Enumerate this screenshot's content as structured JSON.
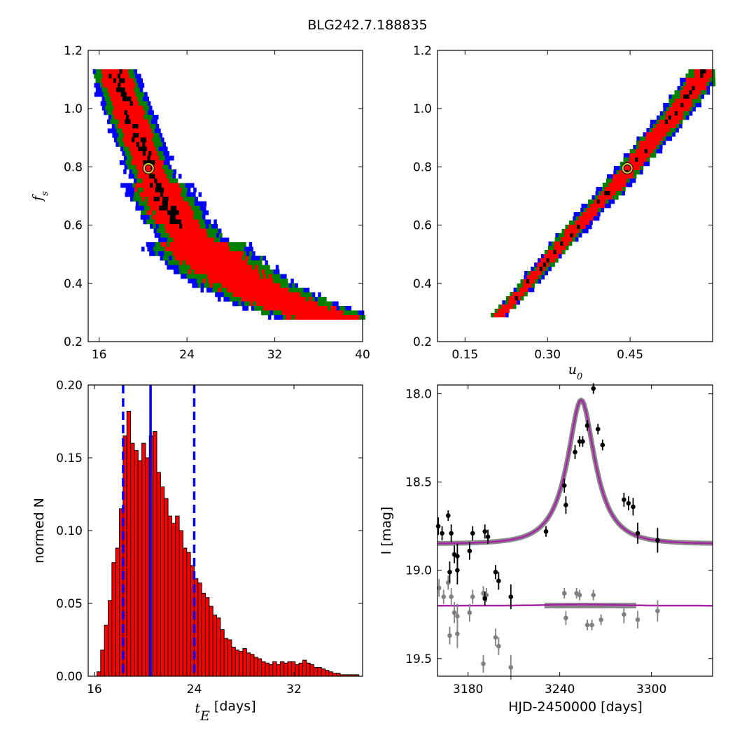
{
  "figure_title": "BLG242.7.188835",
  "chart_data": [
    {
      "id": "fs_vs_tE",
      "type": "heatmap",
      "xlabel": "",
      "ylabel": "f",
      "ylabel_sub": "s",
      "xlim": [
        15,
        40
      ],
      "ylim": [
        0.2,
        1.2
      ],
      "xticks": [
        "16",
        "24",
        "32",
        "40"
      ],
      "yticks": [
        "0.2",
        "0.4",
        "0.6",
        "0.8",
        "1.0",
        "1.2"
      ],
      "levels": [
        "black",
        "red",
        "green",
        "blue"
      ],
      "colors": {
        "black": "#000000",
        "red": "#ff0000",
        "green": "#008000",
        "blue": "#0000ff"
      },
      "ridge": [
        [
          17.3,
          1.13
        ],
        [
          18.5,
          1.0
        ],
        [
          19.5,
          0.9
        ],
        [
          20.5,
          0.8
        ],
        [
          21.8,
          0.7
        ],
        [
          23.0,
          0.62
        ],
        [
          25.0,
          0.53
        ],
        [
          27.0,
          0.46
        ],
        [
          29.5,
          0.4
        ],
        [
          32.0,
          0.35
        ],
        [
          35.0,
          0.31
        ],
        [
          36.5,
          0.29
        ]
      ],
      "best_fit": {
        "x": 20.5,
        "y": 0.795
      }
    },
    {
      "id": "fs_vs_u0",
      "type": "heatmap",
      "xlabel": "u",
      "xlabel_sub": "0",
      "ylabel": "",
      "xlim": [
        0.1,
        0.6
      ],
      "ylim": [
        0.2,
        1.2
      ],
      "xticks": [
        "0.15",
        "0.30",
        "0.45"
      ],
      "yticks": [
        "0.2",
        "0.4",
        "0.6",
        "0.8",
        "1.0",
        "1.2"
      ],
      "colors": {
        "black": "#000000",
        "red": "#ff0000",
        "green": "#008000",
        "blue": "#0000ff"
      },
      "ridge": [
        [
          0.205,
          0.29
        ],
        [
          0.25,
          0.38
        ],
        [
          0.3,
          0.49
        ],
        [
          0.35,
          0.6
        ],
        [
          0.4,
          0.7
        ],
        [
          0.445,
          0.795
        ],
        [
          0.49,
          0.9
        ],
        [
          0.535,
          1.0
        ],
        [
          0.58,
          1.12
        ]
      ],
      "best_fit": {
        "x": 0.445,
        "y": 0.795
      }
    },
    {
      "id": "tE_histogram",
      "type": "bar",
      "xlabel": " [days]",
      "xlabel_math": "t",
      "xlabel_sub": "E",
      "ylabel": "normed N",
      "xlim": [
        15.5,
        37.5
      ],
      "ylim": [
        0.0,
        0.2
      ],
      "xticks": [
        "16",
        "24",
        "32"
      ],
      "yticks": [
        "0.00",
        "0.05",
        "0.10",
        "0.15",
        "0.20"
      ],
      "bin_start": 16.2,
      "bin_width": 0.3,
      "values": [
        0.003,
        0.018,
        0.035,
        0.052,
        0.078,
        0.088,
        0.115,
        0.165,
        0.182,
        0.16,
        0.155,
        0.148,
        0.16,
        0.15,
        0.165,
        0.168,
        0.14,
        0.13,
        0.122,
        0.11,
        0.105,
        0.11,
        0.1,
        0.088,
        0.085,
        0.076,
        0.067,
        0.064,
        0.057,
        0.054,
        0.048,
        0.042,
        0.04,
        0.032,
        0.026,
        0.025,
        0.02,
        0.018,
        0.017,
        0.019,
        0.016,
        0.015,
        0.013,
        0.012,
        0.01,
        0.009,
        0.008,
        0.01,
        0.008,
        0.01,
        0.009,
        0.01,
        0.01,
        0.008,
        0.009,
        0.011,
        0.009,
        0.008,
        0.006,
        0.006,
        0.005,
        0.004,
        0.003,
        0.002,
        0.002,
        0.001,
        0.001,
        0.001,
        0.001,
        0.001
      ],
      "median": 20.5,
      "lower": 18.3,
      "upper": 24.0,
      "line_color": "#0000ff",
      "bar_color": "#ff0000"
    },
    {
      "id": "light_curve",
      "type": "scatter",
      "xlabel": "HJD-2450000 [days]",
      "ylabel": "I [mag]",
      "xlim": [
        3160,
        3340
      ],
      "ylim": [
        19.6,
        17.95
      ],
      "xticks": [
        "3180",
        "3240",
        "3300"
      ],
      "yticks": [
        "18.0",
        "18.5",
        "19.0",
        "19.5"
      ],
      "model": {
        "t0": 3254,
        "tE": 20.5,
        "u0": 0.445,
        "baseline": 18.85,
        "peak": 18.035,
        "color": "#aa22aa",
        "band_color": "#888888"
      },
      "residual_baseline": 19.2,
      "data_points": [
        {
          "x": 3160.5,
          "y": 18.75,
          "e": 0.05
        },
        {
          "x": 3163,
          "y": 18.79,
          "e": 0.04
        },
        {
          "x": 3167,
          "y": 18.69,
          "e": 0.03
        },
        {
          "x": 3169,
          "y": 18.79,
          "e": 0.05
        },
        {
          "x": 3171,
          "y": 18.91,
          "e": 0.05
        },
        {
          "x": 3173,
          "y": 18.92,
          "e": 0.07
        },
        {
          "x": 3168,
          "y": 19.01,
          "e": 0.06
        },
        {
          "x": 3173,
          "y": 19.0,
          "e": 0.08
        },
        {
          "x": 3181,
          "y": 18.89,
          "e": 0.05
        },
        {
          "x": 3183,
          "y": 18.79,
          "e": 0.04
        },
        {
          "x": 3191,
          "y": 18.78,
          "e": 0.04
        },
        {
          "x": 3193,
          "y": 18.81,
          "e": 0.04
        },
        {
          "x": 3198,
          "y": 19.01,
          "e": 0.04
        },
        {
          "x": 3200,
          "y": 19.06,
          "e": 0.05
        },
        {
          "x": 3191,
          "y": 19.16,
          "e": 0.04
        },
        {
          "x": 3208,
          "y": 19.15,
          "e": 0.07
        },
        {
          "x": 3231,
          "y": 18.78,
          "e": 0.03
        },
        {
          "x": 3243,
          "y": 18.52,
          "e": 0.04
        },
        {
          "x": 3244,
          "y": 18.63,
          "e": 0.05
        },
        {
          "x": 3250,
          "y": 18.33,
          "e": 0.04
        },
        {
          "x": 3253,
          "y": 18.27,
          "e": 0.03
        },
        {
          "x": 3255,
          "y": 18.27,
          "e": 0.03
        },
        {
          "x": 3258,
          "y": 18.18,
          "e": 0.03
        },
        {
          "x": 3262,
          "y": 17.97,
          "e": 0.03
        },
        {
          "x": 3265,
          "y": 18.2,
          "e": 0.03
        },
        {
          "x": 3268,
          "y": 18.29,
          "e": 0.03
        },
        {
          "x": 3282,
          "y": 18.6,
          "e": 0.04
        },
        {
          "x": 3285,
          "y": 18.62,
          "e": 0.04
        },
        {
          "x": 3288,
          "y": 18.64,
          "e": 0.05
        },
        {
          "x": 3291,
          "y": 18.79,
          "e": 0.06
        },
        {
          "x": 3304,
          "y": 18.83,
          "e": 0.07
        }
      ],
      "residual_points": [
        {
          "x": 3161,
          "y": 19.1,
          "e": 0.05
        },
        {
          "x": 3164,
          "y": 19.15,
          "e": 0.04
        },
        {
          "x": 3167,
          "y": 19.07,
          "e": 0.04
        },
        {
          "x": 3169,
          "y": 19.15,
          "e": 0.05
        },
        {
          "x": 3168,
          "y": 19.37,
          "e": 0.05
        },
        {
          "x": 3171,
          "y": 19.24,
          "e": 0.06
        },
        {
          "x": 3173,
          "y": 19.26,
          "e": 0.07
        },
        {
          "x": 3173,
          "y": 19.36,
          "e": 0.08
        },
        {
          "x": 3181,
          "y": 19.24,
          "e": 0.05
        },
        {
          "x": 3183,
          "y": 19.15,
          "e": 0.04
        },
        {
          "x": 3190,
          "y": 19.13,
          "e": 0.04
        },
        {
          "x": 3192,
          "y": 19.14,
          "e": 0.04
        },
        {
          "x": 3190,
          "y": 19.53,
          "e": 0.05
        },
        {
          "x": 3198,
          "y": 19.38,
          "e": 0.05
        },
        {
          "x": 3200,
          "y": 19.43,
          "e": 0.05
        },
        {
          "x": 3208,
          "y": 19.55,
          "e": 0.07
        },
        {
          "x": 3243,
          "y": 19.13,
          "e": 0.03
        },
        {
          "x": 3244,
          "y": 19.27,
          "e": 0.04
        },
        {
          "x": 3251,
          "y": 19.13,
          "e": 0.03
        },
        {
          "x": 3253,
          "y": 19.14,
          "e": 0.03
        },
        {
          "x": 3258,
          "y": 19.31,
          "e": 0.03
        },
        {
          "x": 3261,
          "y": 19.31,
          "e": 0.03
        },
        {
          "x": 3262,
          "y": 19.14,
          "e": 0.03
        },
        {
          "x": 3267,
          "y": 19.28,
          "e": 0.03
        },
        {
          "x": 3282,
          "y": 19.25,
          "e": 0.05
        },
        {
          "x": 3291,
          "y": 19.28,
          "e": 0.05
        },
        {
          "x": 3304,
          "y": 19.23,
          "e": 0.06
        }
      ],
      "data_color": "#000000",
      "residual_color": "#808080"
    }
  ]
}
